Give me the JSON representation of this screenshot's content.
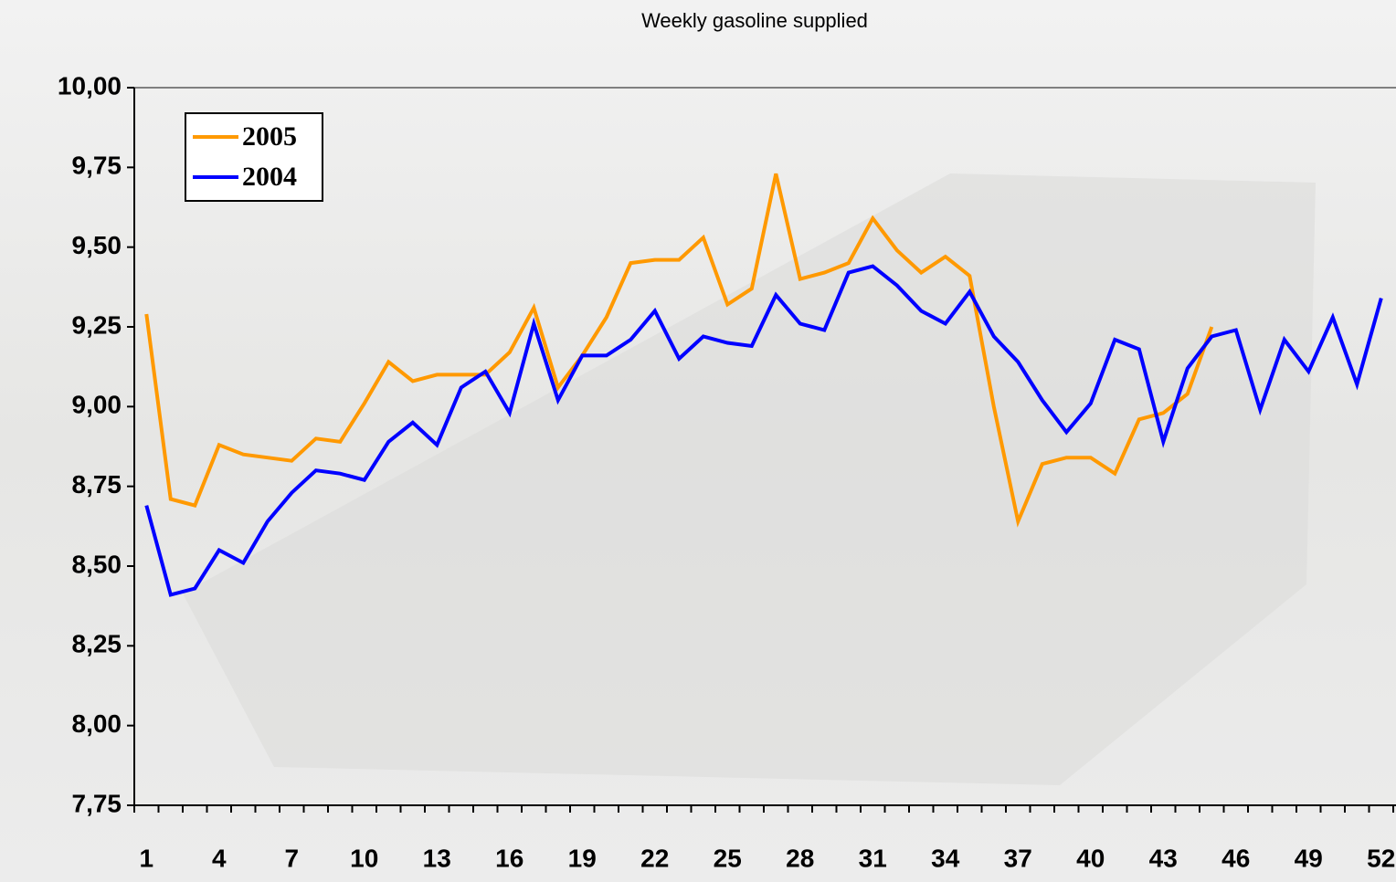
{
  "chart_data": {
    "type": "line",
    "title": "Weekly gasoline supplied",
    "categories": [
      "1",
      null,
      null,
      "4",
      null,
      null,
      "7",
      null,
      null,
      "10",
      null,
      null,
      "13",
      null,
      null,
      "16",
      null,
      null,
      "19",
      null,
      null,
      "22",
      null,
      null,
      "25",
      null,
      null,
      "28",
      null,
      null,
      "31",
      null,
      null,
      "34",
      null,
      null,
      "37",
      null,
      null,
      "40",
      null,
      null,
      "43",
      null,
      null,
      "46",
      null,
      null,
      "49",
      null,
      null,
      "52"
    ],
    "series": [
      {
        "name": "2005",
        "color": "#ff9900",
        "values": [
          9.29,
          8.71,
          8.69,
          8.88,
          8.85,
          8.84,
          8.83,
          8.9,
          8.89,
          9.01,
          9.14,
          9.08,
          9.1,
          9.1,
          9.1,
          9.17,
          9.31,
          9.06,
          9.16,
          9.28,
          9.45,
          9.46,
          9.46,
          9.53,
          9.32,
          9.37,
          9.73,
          9.4,
          9.42,
          9.45,
          9.59,
          9.49,
          9.42,
          9.47,
          9.41,
          9.0,
          8.64,
          8.82,
          8.84,
          8.84,
          8.79,
          8.96,
          8.98,
          9.04,
          9.25,
          null,
          null,
          null,
          null,
          null,
          null,
          null
        ]
      },
      {
        "name": "2004",
        "color": "#0000ff",
        "values": [
          8.69,
          8.41,
          8.43,
          8.55,
          8.51,
          8.64,
          8.73,
          8.8,
          8.79,
          8.77,
          8.89,
          8.95,
          8.88,
          9.06,
          9.11,
          8.98,
          9.26,
          9.02,
          9.16,
          9.16,
          9.21,
          9.3,
          9.15,
          9.22,
          9.2,
          9.19,
          9.35,
          9.26,
          9.24,
          9.42,
          9.44,
          9.38,
          9.3,
          9.26,
          9.36,
          9.22,
          9.14,
          9.02,
          8.92,
          9.01,
          9.21,
          9.18,
          8.89,
          9.12,
          9.22,
          9.24,
          8.99,
          9.21,
          9.11,
          9.28,
          9.07,
          9.34
        ]
      }
    ],
    "ylim": [
      7.75,
      10.0
    ],
    "yticks": [
      {
        "value": 7.75,
        "label": "7,75"
      },
      {
        "value": 8.0,
        "label": "8,00"
      },
      {
        "value": 8.25,
        "label": "8,25"
      },
      {
        "value": 8.5,
        "label": "8,50"
      },
      {
        "value": 8.75,
        "label": "8,75"
      },
      {
        "value": 9.0,
        "label": "9,00"
      },
      {
        "value": 9.25,
        "label": "9,25"
      },
      {
        "value": 9.5,
        "label": "9,50"
      },
      {
        "value": 9.75,
        "label": "9,75"
      },
      {
        "value": 10.0,
        "label": "10,00"
      }
    ],
    "legend": "top-left"
  }
}
